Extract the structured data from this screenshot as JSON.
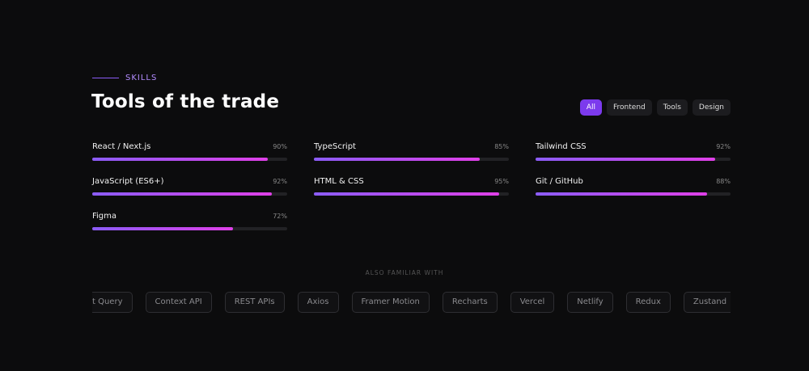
{
  "section": {
    "eyebrow": "SKILLS",
    "title": "Tools of the trade",
    "filters": [
      "All",
      "Frontend",
      "Tools",
      "Design"
    ],
    "skills": [
      {
        "name": "React / Next.js",
        "value": 90,
        "label": "90%"
      },
      {
        "name": "TypeScript",
        "value": 85,
        "label": "85%"
      },
      {
        "name": "Tailwind CSS",
        "value": 92,
        "label": "92%"
      },
      {
        "name": "JavaScript (ES6+)",
        "value": 92,
        "label": "92%"
      },
      {
        "name": "HTML & CSS",
        "value": 95,
        "label": "95%"
      },
      {
        "name": "Git / GitHub",
        "value": 88,
        "label": "88%"
      },
      {
        "name": "Figma",
        "value": 72,
        "label": "72%"
      }
    ],
    "also_heading": "ALSO FAMILIAR WITH",
    "also": [
      "t Query",
      "Context API",
      "REST APIs",
      "Axios",
      "Framer Motion",
      "Recharts",
      "Vercel",
      "Netlify",
      "Redux",
      "Zustand"
    ]
  }
}
